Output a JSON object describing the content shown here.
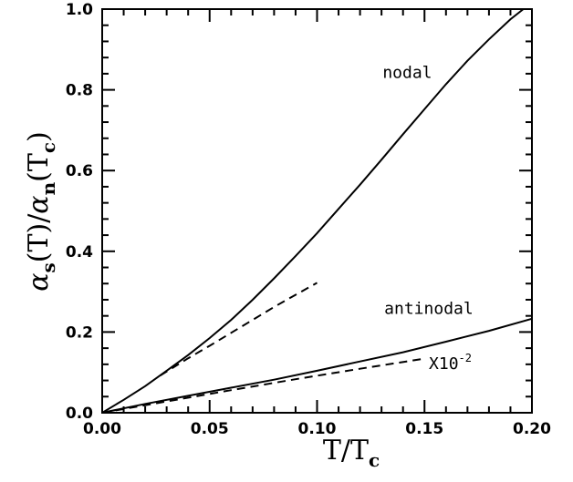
{
  "chart_data": {
    "type": "line",
    "xlabel": {
      "main": "T/T",
      "sub": "c"
    },
    "ylabel": {
      "parts": [
        {
          "text": "α",
          "kind": "greek"
        },
        {
          "text": "s",
          "kind": "sub"
        },
        {
          "text": "(T)/",
          "kind": "normal"
        },
        {
          "text": "α",
          "kind": "greek"
        },
        {
          "text": "n",
          "kind": "sub"
        },
        {
          "text": "(T",
          "kind": "normal"
        },
        {
          "text": "c",
          "kind": "sub"
        },
        {
          "text": ")",
          "kind": "normal"
        }
      ]
    },
    "xlim": [
      0,
      0.2
    ],
    "ylim": [
      0,
      1.0
    ],
    "x_ticks": [
      "0.00",
      "0.05",
      "0.10",
      "0.15",
      "0.20"
    ],
    "y_ticks": [
      "0.0",
      "0.2",
      "0.4",
      "0.6",
      "0.8",
      "1.0"
    ],
    "grid": false,
    "series": [
      {
        "style": "solid",
        "x": [
          0,
          0.01,
          0.02,
          0.03,
          0.04,
          0.05,
          0.06,
          0.07,
          0.08,
          0.09,
          0.1,
          0.11,
          0.12,
          0.13,
          0.14,
          0.15,
          0.16,
          0.17,
          0.18,
          0.19,
          0.196
        ],
        "y": [
          0,
          0.032,
          0.066,
          0.104,
          0.143,
          0.185,
          0.23,
          0.28,
          0.333,
          0.388,
          0.445,
          0.505,
          0.565,
          0.627,
          0.69,
          0.752,
          0.814,
          0.872,
          0.925,
          0.975,
          1.0
        ]
      },
      {
        "style": "dashed",
        "x": [
          0.027,
          0.04,
          0.05,
          0.06,
          0.07,
          0.08,
          0.09,
          0.1
        ],
        "y": [
          0.092,
          0.135,
          0.166,
          0.198,
          0.23,
          0.262,
          0.292,
          0.322
        ]
      },
      {
        "style": "solid",
        "x": [
          0,
          0.02,
          0.04,
          0.06,
          0.08,
          0.1,
          0.12,
          0.14,
          0.16,
          0.18,
          0.2
        ],
        "y": [
          0,
          0.022,
          0.042,
          0.062,
          0.082,
          0.104,
          0.127,
          0.15,
          0.176,
          0.203,
          0.233
        ]
      },
      {
        "style": "dashed",
        "x": [
          0,
          0.03,
          0.06,
          0.09,
          0.12,
          0.15
        ],
        "y": [
          0,
          0.028,
          0.056,
          0.083,
          0.109,
          0.134
        ]
      }
    ],
    "annotations": [
      {
        "text": "nodal",
        "x": 0.142,
        "y": 0.83
      },
      {
        "text": "antinodal",
        "x": 0.152,
        "y": 0.245
      },
      {
        "text": "X10",
        "sup": "-2",
        "x": 0.162,
        "y": 0.108
      }
    ]
  }
}
